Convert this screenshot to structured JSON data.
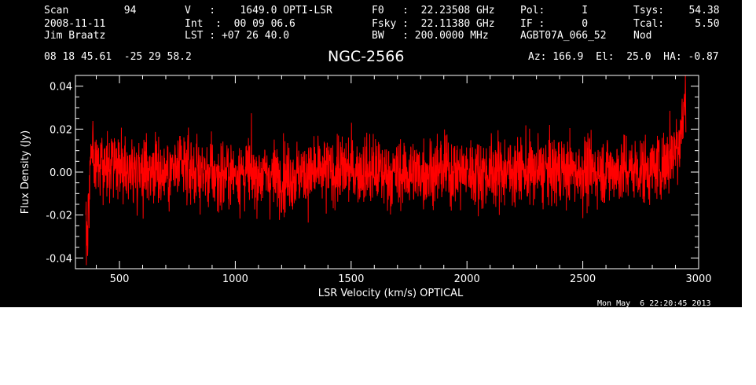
{
  "header": {
    "col1": [
      "Scan         94",
      "2008-11-11",
      "Jim Braatz"
    ],
    "col2": [
      "V   :    1649.0 OPTI-LSR",
      "Int  :  00 09 06.6",
      "LST : +07 26 40.0"
    ],
    "col3": [
      "F0   :  22.23508 GHz",
      "Fsky :  22.11380 GHz",
      "BW   : 200.0000 MHz"
    ],
    "col4": [
      "Pol:      I",
      "IF :      0",
      "AGBT07A_066_52"
    ],
    "col5": [
      "Tsys:    54.38",
      "Tcal:     5.50",
      "Nod"
    ],
    "coords": "08 18 45.61  -25 29 58.2",
    "source": "NGC-2566",
    "pointing": "Az: 166.9  El:  25.0  HA: -0.87"
  },
  "timestamp": "Mon May  6 22:20:45 2013",
  "colors": {
    "background": "#000000",
    "axes": "#ffffff",
    "trace": "#ff0000"
  },
  "chart_data": {
    "type": "line",
    "xlabel": "LSR Velocity (km/s) OPTICAL",
    "ylabel": "Flux Density (Jy)",
    "xlim": [
      310,
      3000
    ],
    "ylim": [
      -0.045,
      0.045
    ],
    "xticks": [
      500,
      1000,
      1500,
      2000,
      2500,
      3000
    ],
    "xtick_labels": [
      "500",
      "1000",
      "1500",
      "2000",
      "2500",
      "3000"
    ],
    "yticks": [
      -0.04,
      -0.02,
      0.0,
      0.02,
      0.04
    ],
    "ytick_labels": [
      "-0.04",
      "-0.02",
      "0.00",
      "0.02",
      "0.04"
    ],
    "series": [
      {
        "x_range": [
          355,
          2945
        ],
        "approx_points": [
          [
            355,
            -0.024
          ],
          [
            360,
            -0.032
          ],
          [
            380,
            0.008
          ],
          [
            400,
            0.002
          ],
          [
            500,
            0.0
          ],
          [
            600,
            0.003
          ],
          [
            700,
            0.0
          ],
          [
            800,
            0.002
          ],
          [
            900,
            -0.002
          ],
          [
            1000,
            0.0
          ],
          [
            1100,
            -0.001
          ],
          [
            1200,
            -0.002
          ],
          [
            1300,
            -0.001
          ],
          [
            1400,
            0.0
          ],
          [
            1500,
            0.001
          ],
          [
            1600,
            0.0
          ],
          [
            1700,
            -0.001
          ],
          [
            1800,
            0.0
          ],
          [
            1900,
            0.001
          ],
          [
            2000,
            0.0
          ],
          [
            2100,
            0.0
          ],
          [
            2200,
            0.001
          ],
          [
            2300,
            0.0
          ],
          [
            2400,
            0.001
          ],
          [
            2500,
            0.0
          ],
          [
            2600,
            0.001
          ],
          [
            2700,
            0.001
          ],
          [
            2800,
            0.001
          ],
          [
            2850,
            0.004
          ],
          [
            2900,
            0.012
          ],
          [
            2930,
            0.022
          ],
          [
            2945,
            0.038
          ]
        ],
        "rms_noise": 0.008
      }
    ]
  }
}
